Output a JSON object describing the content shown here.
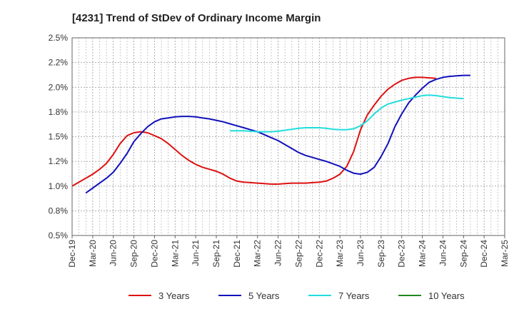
{
  "chart_data": {
    "type": "line",
    "title": "[4231]  Trend of StDev of Ordinary Income Margin",
    "xlabel": "",
    "ylabel": "",
    "ylim": [
      0.5,
      2.5
    ],
    "y_ticks": [
      "0.5%",
      "0.8%",
      "1.0%",
      "1.2%",
      "1.5%",
      "1.8%",
      "2.0%",
      "2.2%",
      "2.5%"
    ],
    "y_tick_values": [
      0.5,
      0.75,
      1.0,
      1.25,
      1.5,
      1.75,
      2.0,
      2.25,
      2.5
    ],
    "x_ticks": [
      "Dec-19",
      "Mar-20",
      "Jun-20",
      "Sep-20",
      "Dec-20",
      "Mar-21",
      "Jun-21",
      "Sep-21",
      "Dec-21",
      "Mar-22",
      "Jun-22",
      "Sep-22",
      "Dec-22",
      "Mar-23",
      "Jun-23",
      "Sep-23",
      "Dec-23",
      "Mar-24",
      "Jun-24",
      "Sep-24",
      "Dec-24",
      "Mar-25"
    ],
    "grid": true,
    "legend_position": "bottom",
    "series": [
      {
        "name": "3 Years",
        "color": "#dd1111",
        "start_index": 0,
        "values": [
          1.0,
          1.04,
          1.08,
          1.12,
          1.17,
          1.23,
          1.32,
          1.43,
          1.51,
          1.54,
          1.55,
          1.54,
          1.51,
          1.48,
          1.43,
          1.37,
          1.31,
          1.26,
          1.22,
          1.19,
          1.17,
          1.15,
          1.12,
          1.08,
          1.05,
          1.04,
          1.035,
          1.03,
          1.025,
          1.02,
          1.02,
          1.025,
          1.03,
          1.03,
          1.03,
          1.035,
          1.04,
          1.05,
          1.08,
          1.12,
          1.2,
          1.35,
          1.57,
          1.72,
          1.82,
          1.91,
          1.98,
          2.03,
          2.07,
          2.09,
          2.1,
          2.1,
          2.095,
          2.09
        ]
      },
      {
        "name": "5 Years",
        "color": "#1111bb",
        "start_index": 2,
        "values": [
          0.93,
          0.98,
          1.03,
          1.08,
          1.14,
          1.23,
          1.33,
          1.45,
          1.53,
          1.6,
          1.65,
          1.68,
          1.69,
          1.7,
          1.705,
          1.705,
          1.7,
          1.69,
          1.68,
          1.665,
          1.65,
          1.63,
          1.61,
          1.59,
          1.57,
          1.55,
          1.52,
          1.49,
          1.46,
          1.42,
          1.38,
          1.34,
          1.31,
          1.29,
          1.27,
          1.25,
          1.225,
          1.2,
          1.16,
          1.13,
          1.12,
          1.14,
          1.19,
          1.3,
          1.43,
          1.6,
          1.73,
          1.84,
          1.92,
          1.99,
          2.05,
          2.08,
          2.1,
          2.11,
          2.115,
          2.12,
          2.12
        ]
      },
      {
        "name": "7 Years",
        "color": "#22dddd",
        "start_index": 23,
        "values": [
          1.56,
          1.56,
          1.56,
          1.555,
          1.55,
          1.55,
          1.55,
          1.555,
          1.565,
          1.575,
          1.585,
          1.59,
          1.59,
          1.59,
          1.585,
          1.575,
          1.57,
          1.57,
          1.58,
          1.61,
          1.66,
          1.73,
          1.79,
          1.83,
          1.85,
          1.87,
          1.885,
          1.9,
          1.915,
          1.92,
          1.915,
          1.905,
          1.895,
          1.89,
          1.885
        ]
      },
      {
        "name": "10 Years",
        "color": "#228822",
        "start_index": 0,
        "values": []
      }
    ]
  }
}
